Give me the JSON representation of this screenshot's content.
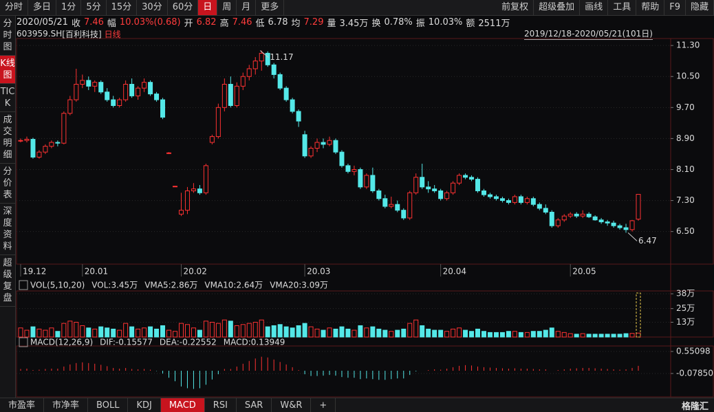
{
  "toolbar": {
    "tabs": [
      "分时",
      "多日",
      "1分",
      "5分",
      "15分",
      "30分",
      "60分",
      "日",
      "周",
      "月",
      "更多"
    ],
    "right": [
      "前复权",
      "超级叠加",
      "画线",
      "工具",
      "帮助",
      "F9",
      "隐藏"
    ]
  },
  "info": {
    "date": "2020/05/21",
    "items": [
      {
        "label": "收",
        "value": "7.46",
        "color": "#ff3c3c"
      },
      {
        "label": "幅",
        "value": "10.03%(0.68)",
        "color": "#ff3c3c"
      },
      {
        "label": "开",
        "value": "6.82",
        "color": "#ff3c3c"
      },
      {
        "label": "高",
        "value": "7.46",
        "color": "#ff3c3c"
      },
      {
        "label": "低",
        "value": "6.78",
        "color": "#dddddd"
      },
      {
        "label": "均",
        "value": "7.29",
        "color": "#ff3c3c"
      },
      {
        "label": "量",
        "value": "3.45万",
        "color": "#dddddd"
      },
      {
        "label": "换",
        "value": "0.78%",
        "color": "#dddddd"
      },
      {
        "label": "振",
        "value": "10.03%",
        "color": "#dddddd"
      },
      {
        "label": "额",
        "value": "2511万",
        "color": "#dddddd"
      }
    ]
  },
  "stock": {
    "code": "603959.SH",
    "name": "[百利科技]",
    "period": "日线",
    "range": "2019/12/18-2020/05/21(101日)"
  },
  "sidebar": [
    "分时图",
    "K线图",
    "TICK",
    "成交明细",
    "分价表",
    "深度资料",
    "超级复盘"
  ],
  "bottom_tabs": [
    "市盈率",
    "市净率",
    "BOLL",
    "KDJ",
    "MACD",
    "RSI",
    "SAR",
    "W&R",
    "+"
  ],
  "logo": "格隆汇",
  "chart_data": {
    "type": "candlestick",
    "categories": [
      "19.12",
      null,
      null,
      null,
      null,
      null,
      null,
      null,
      null,
      null,
      "20.01",
      null,
      null,
      null,
      null,
      null,
      null,
      null,
      null,
      null,
      null,
      null,
      null,
      null,
      null,
      null,
      "20.02",
      null,
      null,
      null,
      null,
      null,
      null,
      null,
      null,
      null,
      null,
      null,
      null,
      null,
      null,
      null,
      null,
      null,
      null,
      null,
      "20.03",
      null,
      null,
      null,
      null,
      null,
      null,
      null,
      null,
      null,
      null,
      null,
      null,
      null,
      null,
      null,
      null,
      null,
      null,
      null,
      null,
      null,
      "20.04",
      null,
      null,
      null,
      null,
      null,
      null,
      null,
      null,
      null,
      null,
      null,
      null,
      null,
      null,
      null,
      null,
      null,
      null,
      null,
      null,
      "20.05",
      null,
      null,
      null,
      null,
      null,
      null,
      null,
      null,
      null,
      null,
      null
    ],
    "candles": [
      [
        8.85,
        8.9,
        8.8,
        8.85
      ],
      [
        8.85,
        8.95,
        8.8,
        8.88
      ],
      [
        8.88,
        8.92,
        8.38,
        8.42
      ],
      [
        8.42,
        8.6,
        8.38,
        8.55
      ],
      [
        8.55,
        8.75,
        8.5,
        8.7
      ],
      [
        8.7,
        8.85,
        8.65,
        8.8
      ],
      [
        8.8,
        8.85,
        8.7,
        8.78
      ],
      [
        8.78,
        9.6,
        8.75,
        9.55
      ],
      [
        9.55,
        10.0,
        9.5,
        9.9
      ],
      [
        9.9,
        10.7,
        9.85,
        10.3
      ],
      [
        10.3,
        10.55,
        10.2,
        10.4
      ],
      [
        10.4,
        10.5,
        10.15,
        10.25
      ],
      [
        10.25,
        10.4,
        10.1,
        10.35
      ],
      [
        10.35,
        10.4,
        10.05,
        10.1
      ],
      [
        10.1,
        10.2,
        9.85,
        9.9
      ],
      [
        9.9,
        10.0,
        9.7,
        9.75
      ],
      [
        9.75,
        9.95,
        9.7,
        9.9
      ],
      [
        9.9,
        10.4,
        9.85,
        10.3
      ],
      [
        10.3,
        10.45,
        9.95,
        10.0
      ],
      [
        10.0,
        10.25,
        9.9,
        10.2
      ],
      [
        10.2,
        10.45,
        10.1,
        10.35
      ],
      [
        10.35,
        10.4,
        10.0,
        10.05
      ],
      [
        10.05,
        10.1,
        9.85,
        9.9
      ],
      [
        9.9,
        9.95,
        9.4,
        9.45
      ],
      [
        8.53,
        8.55,
        8.5,
        8.53
      ],
      [
        7.67,
        7.68,
        7.66,
        7.67
      ],
      [
        6.95,
        7.5,
        6.9,
        7.05
      ],
      [
        7.05,
        7.65,
        6.95,
        7.55
      ],
      [
        7.55,
        7.75,
        7.5,
        7.6
      ],
      [
        7.6,
        7.7,
        7.45,
        7.5
      ],
      [
        7.5,
        8.25,
        7.45,
        8.2
      ],
      [
        8.8,
        9.0,
        8.75,
        8.95
      ],
      [
        8.95,
        9.8,
        8.9,
        9.7
      ],
      [
        9.7,
        10.45,
        9.6,
        10.3
      ],
      [
        10.3,
        10.5,
        9.7,
        9.75
      ],
      [
        9.75,
        10.35,
        9.7,
        10.25
      ],
      [
        10.25,
        10.6,
        10.15,
        10.5
      ],
      [
        10.5,
        10.8,
        10.4,
        10.7
      ],
      [
        10.7,
        11.0,
        10.55,
        10.9
      ],
      [
        10.9,
        11.17,
        10.65,
        11.1
      ],
      [
        11.1,
        11.15,
        10.75,
        10.8
      ],
      [
        10.8,
        10.85,
        10.45,
        10.55
      ],
      [
        10.55,
        10.6,
        10.15,
        10.2
      ],
      [
        10.2,
        10.25,
        9.85,
        9.9
      ],
      [
        9.9,
        9.95,
        9.55,
        9.6
      ],
      [
        9.6,
        9.65,
        9.2,
        9.35
      ],
      [
        9.0,
        9.1,
        8.4,
        8.45
      ],
      [
        8.45,
        8.7,
        8.4,
        8.65
      ],
      [
        8.65,
        8.9,
        8.55,
        8.8
      ],
      [
        8.8,
        8.9,
        8.65,
        8.75
      ],
      [
        8.75,
        8.95,
        8.7,
        8.85
      ],
      [
        8.85,
        8.9,
        8.5,
        8.55
      ],
      [
        8.55,
        8.6,
        8.15,
        8.2
      ],
      [
        8.2,
        8.25,
        8.0,
        8.05
      ],
      [
        8.05,
        8.2,
        7.95,
        8.1
      ],
      [
        8.1,
        8.15,
        7.6,
        7.65
      ],
      [
        7.65,
        8.0,
        7.6,
        7.95
      ],
      [
        7.95,
        8.15,
        7.5,
        7.55
      ],
      [
        7.55,
        7.6,
        7.3,
        7.35
      ],
      [
        7.35,
        7.45,
        7.1,
        7.15
      ],
      [
        7.15,
        7.4,
        7.1,
        7.2
      ],
      [
        7.2,
        7.3,
        7.0,
        7.05
      ],
      [
        7.05,
        7.1,
        6.8,
        6.85
      ],
      [
        6.85,
        7.55,
        6.8,
        7.5
      ],
      [
        7.5,
        8.0,
        7.45,
        7.9
      ],
      [
        7.9,
        8.25,
        7.6,
        7.65
      ],
      [
        7.65,
        7.8,
        7.5,
        7.6
      ],
      [
        7.6,
        7.7,
        7.5,
        7.55
      ],
      [
        7.55,
        7.6,
        7.3,
        7.35
      ],
      [
        7.35,
        7.55,
        7.3,
        7.5
      ],
      [
        7.5,
        7.8,
        7.45,
        7.75
      ],
      [
        7.75,
        8.0,
        7.7,
        7.95
      ],
      [
        7.95,
        8.0,
        7.85,
        7.9
      ],
      [
        7.9,
        7.95,
        7.8,
        7.85
      ],
      [
        7.85,
        7.9,
        7.5,
        7.55
      ],
      [
        7.55,
        7.6,
        7.4,
        7.45
      ],
      [
        7.45,
        7.5,
        7.35,
        7.4
      ],
      [
        7.4,
        7.45,
        7.3,
        7.35
      ],
      [
        7.35,
        7.4,
        7.25,
        7.3
      ],
      [
        7.3,
        7.35,
        7.2,
        7.25
      ],
      [
        7.25,
        7.45,
        7.2,
        7.4
      ],
      [
        7.4,
        7.45,
        7.2,
        7.25
      ],
      [
        7.25,
        7.4,
        7.2,
        7.35
      ],
      [
        7.35,
        7.4,
        7.15,
        7.2
      ],
      [
        7.2,
        7.25,
        7.05,
        7.1
      ],
      [
        7.1,
        7.2,
        6.95,
        7.0
      ],
      [
        7.0,
        7.05,
        6.6,
        6.65
      ],
      [
        6.65,
        6.85,
        6.6,
        6.8
      ],
      [
        6.8,
        6.95,
        6.75,
        6.9
      ],
      [
        6.9,
        7.0,
        6.85,
        6.95
      ],
      [
        6.95,
        7.0,
        6.85,
        6.9
      ],
      [
        6.9,
        7.05,
        6.85,
        6.95
      ],
      [
        6.95,
        7.0,
        6.85,
        6.88
      ],
      [
        6.88,
        6.92,
        6.78,
        6.8
      ],
      [
        6.8,
        6.85,
        6.7,
        6.75
      ],
      [
        6.75,
        6.8,
        6.65,
        6.72
      ],
      [
        6.72,
        6.78,
        6.6,
        6.65
      ],
      [
        6.65,
        6.7,
        6.55,
        6.6
      ],
      [
        6.6,
        6.7,
        6.47,
        6.55
      ],
      [
        6.55,
        6.8,
        6.5,
        6.78
      ],
      [
        6.82,
        7.46,
        6.78,
        7.46
      ]
    ],
    "ylim": [
      5.66,
      11.48
    ],
    "yticks": [
      {
        "value": 11.3,
        "label": "11.30"
      },
      {
        "value": 10.5,
        "label": "10.50"
      },
      {
        "value": 9.7,
        "label": "9.70"
      },
      {
        "value": 8.9,
        "label": "8.90"
      },
      {
        "value": 8.1,
        "label": "8.10"
      },
      {
        "value": 7.3,
        "label": "7.30"
      },
      {
        "value": 6.5,
        "label": "6.50"
      }
    ],
    "annotations": [
      "11.17",
      "6.47"
    ],
    "up_color": "#ff3232",
    "down_color": "#54e8e8",
    "grid": true,
    "volume": {
      "legend": [
        "VOL(5,10,20)",
        "VOL:3.45万",
        "VMA5:2.86万",
        "VMA10:2.64万",
        "VMA20:3.09万"
      ],
      "legend_colors": [
        "#dddddd",
        "#dddddd",
        "#dddddd",
        "#e8e84a",
        "#e040e0"
      ],
      "values": [
        8,
        6,
        9,
        7,
        6,
        8,
        5,
        12,
        14,
        13,
        10,
        8,
        7,
        9,
        8,
        7,
        6,
        12,
        9,
        7,
        8,
        9,
        7,
        10,
        6,
        5,
        12,
        11,
        8,
        6,
        14,
        13,
        12,
        15,
        14,
        10,
        11,
        12,
        13,
        15,
        9,
        10,
        11,
        9,
        8,
        10,
        12,
        9,
        7,
        6,
        8,
        7,
        9,
        7,
        6,
        10,
        8,
        9,
        7,
        6,
        5,
        6,
        7,
        12,
        15,
        10,
        7,
        6,
        6,
        5,
        7,
        8,
        6,
        5,
        7,
        5,
        4,
        4,
        4,
        5,
        5,
        4,
        4,
        5,
        5,
        6,
        8,
        5,
        4,
        3,
        2.5,
        3,
        2.5,
        2.5,
        2.5,
        2.5,
        2.5,
        2.5,
        3,
        3.2,
        3.45
      ],
      "ylim": [
        0,
        40.5
      ],
      "yticks": [
        {
          "value": 38,
          "label": "38万"
        },
        {
          "value": 25,
          "label": "25万"
        },
        {
          "value": 13,
          "label": "13万"
        }
      ]
    },
    "macd": {
      "legend": [
        "MACD(12,26,9)",
        "DIF:-0.15577",
        "DEA:-0.22552",
        "MACD:0.13949"
      ],
      "legend_colors": [
        "#dddddd",
        "#dddddd",
        "#e8e84a",
        "#e040e0"
      ],
      "values": [
        0.05,
        0.06,
        0.02,
        0.03,
        0.05,
        0.06,
        0.06,
        0.12,
        0.18,
        0.22,
        0.24,
        0.22,
        0.2,
        0.17,
        0.13,
        0.08,
        0.06,
        0.08,
        0.05,
        0.04,
        0.05,
        0.03,
        -0.01,
        -0.08,
        -0.2,
        -0.3,
        -0.45,
        -0.5,
        -0.52,
        -0.5,
        -0.4,
        -0.25,
        -0.1,
        0.05,
        0.05,
        0.12,
        0.2,
        0.28,
        0.35,
        0.4,
        0.38,
        0.32,
        0.25,
        0.18,
        0.1,
        0.02,
        -0.1,
        -0.15,
        -0.15,
        -0.14,
        -0.12,
        -0.14,
        -0.18,
        -0.2,
        -0.2,
        -0.24,
        -0.22,
        -0.24,
        -0.26,
        -0.26,
        -0.24,
        -0.22,
        -0.22,
        -0.12,
        -0.02,
        0.0,
        0.02,
        0.04,
        0.03,
        0.06,
        0.1,
        0.14,
        0.16,
        0.15,
        0.12,
        0.1,
        0.09,
        0.08,
        0.07,
        0.06,
        0.07,
        0.06,
        0.06,
        0.05,
        0.04,
        0.04,
        0.0,
        0.02,
        0.04,
        0.06,
        0.07,
        0.08,
        0.08,
        0.07,
        0.06,
        0.05,
        0.04,
        0.03,
        0.04,
        0.08,
        0.13949
      ],
      "ylim": [
        -0.747,
        0.708
      ],
      "yticks": [
        {
          "value": 0.55098,
          "label": "0.55098"
        },
        {
          "value": -0.0785,
          "label": "-0.07850"
        }
      ]
    }
  }
}
